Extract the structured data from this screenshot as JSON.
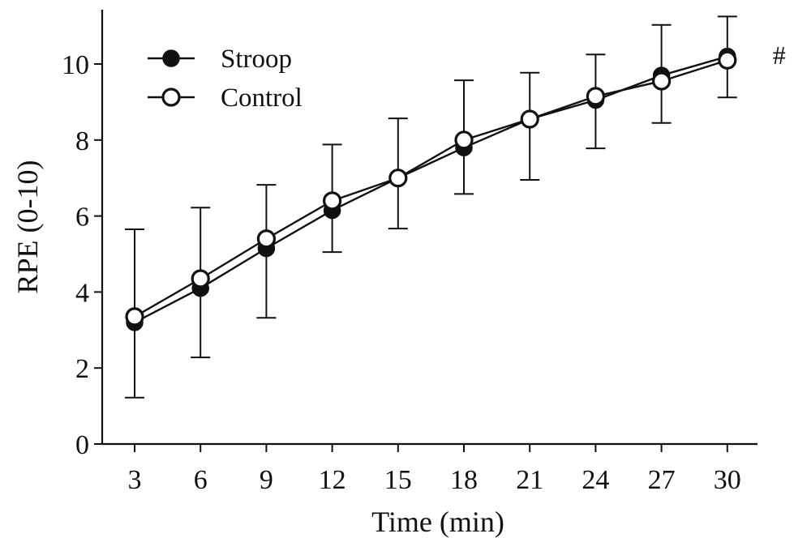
{
  "chart_data": {
    "type": "line",
    "title": "",
    "xlabel": "Time (min)",
    "ylabel": "RPE (0-10)",
    "x": [
      3,
      6,
      9,
      12,
      15,
      18,
      21,
      24,
      27,
      30
    ],
    "x_tick_labels": [
      "3",
      "6",
      "9",
      "12",
      "15",
      "18",
      "21",
      "24",
      "27",
      "30"
    ],
    "ylim": [
      0,
      11
    ],
    "y_ticks": [
      0,
      2,
      4,
      6,
      8,
      10
    ],
    "y_tick_labels": [
      "0",
      "2",
      "4",
      "6",
      "8",
      "10"
    ],
    "grid": false,
    "legend_position": "top-left",
    "series": [
      {
        "name": "Stroop",
        "marker": "filled-circle",
        "color": "#111111",
        "values": [
          3.2,
          4.1,
          5.15,
          6.15,
          7.0,
          7.8,
          8.55,
          9.05,
          9.7,
          10.2
        ],
        "error_upper": [
          5.65,
          6.22,
          6.82,
          7.88,
          8.57,
          9.57,
          9.77,
          10.25,
          11.03,
          11.25
        ],
        "error_lower": [
          1.22,
          2.28,
          3.32,
          5.05,
          5.67,
          6.58,
          6.95,
          7.78,
          8.45,
          9.12
        ]
      },
      {
        "name": "Control",
        "marker": "open-circle",
        "color": "#111111",
        "values": [
          3.35,
          4.35,
          5.4,
          6.4,
          7.0,
          8.0,
          8.55,
          9.15,
          9.55,
          10.1
        ]
      }
    ],
    "annotations": [
      {
        "text": "#",
        "x": 30
      }
    ]
  }
}
